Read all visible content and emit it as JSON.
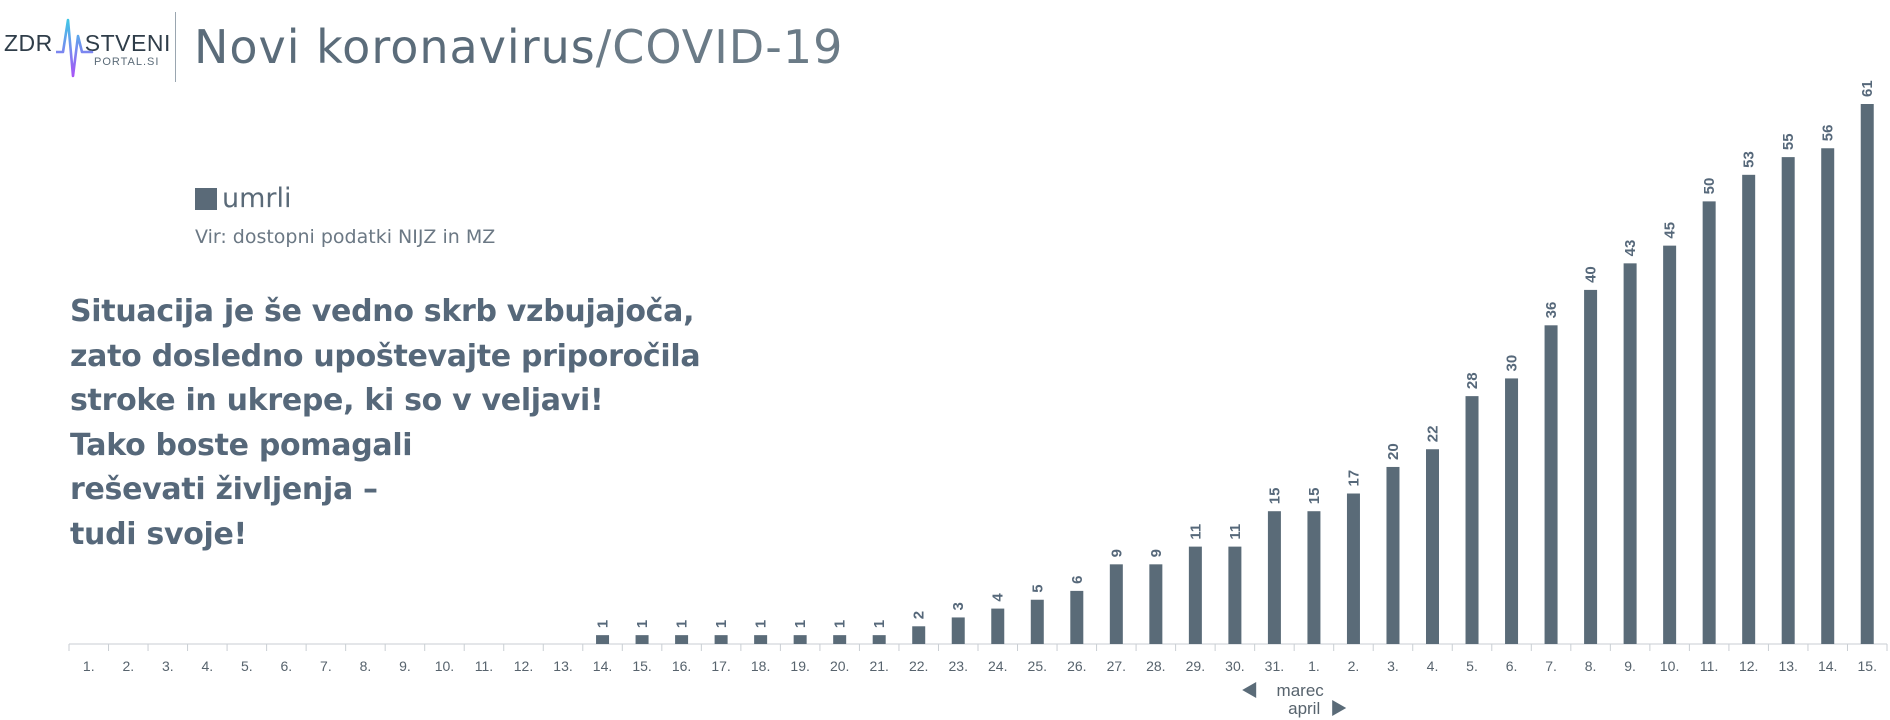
{
  "logo": {
    "text_left": "ZDR",
    "text_right": "STVENI",
    "subtext": "PORTAL.SI"
  },
  "header": {
    "title_main": "Novi koronavirus",
    "title_sub": "/COVID-19"
  },
  "legend": {
    "label": "umrli",
    "color": "#5a6b78"
  },
  "source": "Vir: dostopni podatki NIJZ in MZ",
  "message": {
    "lines": [
      "Situacija je še vedno skrb vzbujajoča,",
      "zato dosledno upoštevajte priporočila",
      "stroke in ukrepe, ki so v veljavi!",
      "Tako boste pomagali",
      "reševati življenja –",
      "tudi svoje!"
    ]
  },
  "chart_data": {
    "type": "bar",
    "categories": [
      "1.",
      "2.",
      "3.",
      "4.",
      "5.",
      "6.",
      "7.",
      "8.",
      "9.",
      "10.",
      "11.",
      "12.",
      "13.",
      "14.",
      "15.",
      "16.",
      "17.",
      "18.",
      "19.",
      "20.",
      "21.",
      "22.",
      "23.",
      "24.",
      "25.",
      "26.",
      "27.",
      "28.",
      "29.",
      "30.",
      "31.",
      "1.",
      "2.",
      "3.",
      "4.",
      "5.",
      "6.",
      "7.",
      "8.",
      "9.",
      "10.",
      "11.",
      "12.",
      "13.",
      "14.",
      "15."
    ],
    "values": [
      null,
      null,
      null,
      null,
      null,
      null,
      null,
      null,
      null,
      null,
      null,
      null,
      null,
      1,
      1,
      1,
      1,
      1,
      1,
      1,
      1,
      2,
      3,
      4,
      5,
      6,
      9,
      9,
      11,
      11,
      15,
      15,
      17,
      20,
      22,
      28,
      30,
      36,
      40,
      43,
      45,
      50,
      53,
      55,
      56,
      61
    ],
    "series": [
      {
        "name": "umrli",
        "color": "#5a6b78"
      }
    ],
    "month_labels": [
      "marec",
      "april"
    ],
    "ylim": [
      0,
      61
    ],
    "grid": false,
    "legend_position": "top-left"
  }
}
